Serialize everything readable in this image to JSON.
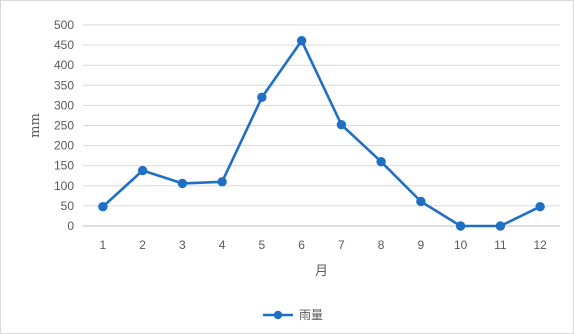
{
  "chart_data": {
    "type": "line",
    "title": "",
    "xlabel": "月",
    "ylabel": "mm",
    "categories": [
      "1",
      "2",
      "3",
      "4",
      "5",
      "6",
      "7",
      "8",
      "9",
      "10",
      "11",
      "12"
    ],
    "series": [
      {
        "name": "雨量",
        "values": [
          48,
          138,
          106,
          110,
          320,
          461,
          252,
          160,
          61,
          0,
          0,
          48
        ],
        "color": "#1f6fc5"
      }
    ],
    "ylim": [
      0,
      500
    ],
    "yticks": [
      0,
      50,
      100,
      150,
      200,
      250,
      300,
      350,
      400,
      450,
      500
    ],
    "grid": true,
    "legend_position": "bottom",
    "marker": "circle"
  }
}
